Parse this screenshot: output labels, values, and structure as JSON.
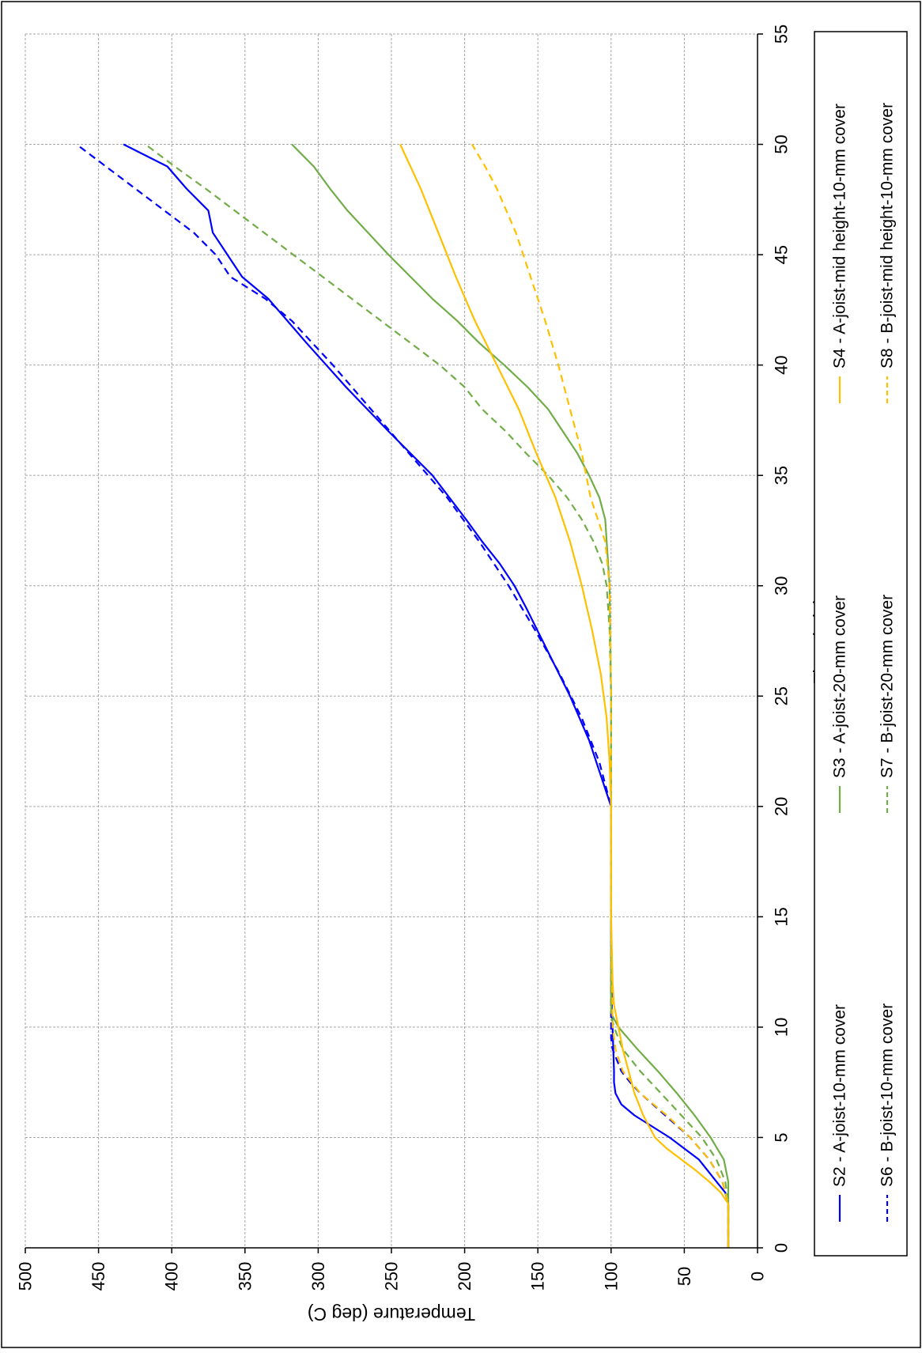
{
  "chart_data": {
    "type": "line",
    "xlabel": "Time (min)",
    "ylabel": "Temperature (deg C)",
    "xlim": [
      0,
      55
    ],
    "ylim": [
      0,
      500
    ],
    "xticks": [
      0,
      5,
      10,
      15,
      20,
      25,
      30,
      35,
      40,
      45,
      50,
      55
    ],
    "yticks": [
      0,
      50,
      100,
      150,
      200,
      250,
      300,
      350,
      400,
      450,
      500
    ],
    "xtick_labels": [
      "0",
      "5",
      "10",
      "15",
      "20",
      "25",
      "30",
      "35",
      "40",
      "45",
      "50",
      "55"
    ],
    "ytick_labels": [
      "0",
      "50",
      "100",
      "150",
      "200",
      "250",
      "300",
      "350",
      "400",
      "450",
      "500"
    ],
    "grid": true,
    "orientation": "rotated 90 degrees clockwise",
    "legend_position": "right",
    "series": [
      {
        "name": "S2 - A-joist-10-mm cover",
        "color": "#0000FF",
        "dash": "solid",
        "x": [
          0,
          2,
          2.5,
          3,
          4,
          5,
          5.5,
          6,
          6.5,
          7,
          7.5,
          8,
          9,
          10,
          11,
          15,
          20,
          21,
          23,
          25,
          27,
          29,
          30,
          31,
          32,
          33,
          35,
          37,
          39,
          41,
          43,
          44,
          45,
          46,
          47,
          48,
          49,
          50
        ],
        "y": [
          20,
          20,
          22,
          28,
          40,
          60,
          72,
          84,
          93,
          97,
          98,
          98,
          98.5,
          99,
          99.5,
          100,
          100,
          105,
          115,
          128,
          143,
          158,
          166,
          176,
          188,
          199,
          222,
          252,
          281,
          308,
          334,
          352,
          362,
          372,
          375,
          390,
          403,
          433
        ]
      },
      {
        "name": "S6 - B-joist-10-mm cover",
        "color": "#0000FF",
        "dash": "dashed",
        "x": [
          0,
          2,
          3,
          4,
          5,
          6,
          7,
          7.5,
          8,
          9,
          9.5,
          10,
          15,
          20,
          22,
          24,
          26,
          28,
          30,
          32,
          34,
          36,
          38,
          40,
          42,
          43,
          44,
          45,
          46,
          47,
          48,
          49,
          50
        ],
        "y": [
          20,
          20,
          24,
          33,
          46,
          63,
          80,
          87,
          93,
          99,
          100,
          100,
          100,
          100,
          108,
          120,
          135,
          152,
          170,
          190,
          212,
          238,
          264,
          290,
          318,
          336,
          360,
          370,
          385,
          405,
          425,
          445,
          465
        ]
      },
      {
        "name": "S3 - A-joist-20-mm cover",
        "color": "#70AD47",
        "dash": "solid",
        "x": [
          0,
          3,
          4,
          5,
          6,
          7,
          8,
          9,
          10,
          10.5,
          11,
          15,
          20,
          25,
          30,
          33,
          34,
          35,
          36,
          37,
          38,
          39,
          40,
          41,
          42,
          43,
          44,
          45,
          46,
          47,
          48,
          49,
          50
        ],
        "y": [
          20,
          20,
          23,
          32,
          43,
          55,
          68,
          82,
          95,
          99,
          100,
          100,
          100,
          100,
          101,
          104,
          108,
          115,
          123,
          133,
          143,
          157,
          173,
          190,
          205,
          222,
          237,
          252,
          266,
          280,
          292,
          303,
          318
        ]
      },
      {
        "name": "S7 - B-joist-20-mm cover",
        "color": "#70AD47",
        "dash": "dashed",
        "x": [
          0,
          2,
          3,
          4,
          5,
          6,
          7,
          8,
          9,
          10,
          10.5,
          15,
          20,
          25,
          28,
          30,
          31,
          32,
          33,
          34,
          35,
          36,
          37,
          38,
          39,
          40,
          41,
          42,
          43,
          44,
          45,
          46,
          47,
          48,
          49,
          50
        ],
        "y": [
          20,
          20,
          22,
          28,
          38,
          52,
          66,
          80,
          92,
          98,
          100,
          100,
          100,
          100,
          101,
          103,
          106,
          112,
          120,
          130,
          143,
          158,
          172,
          188,
          200,
          217,
          237,
          257,
          277,
          297,
          317,
          337,
          357,
          377,
          398,
          418
        ]
      },
      {
        "name": "S4 - A-joist-mid height-10-mm cover",
        "color": "#FFC000",
        "dash": "solid",
        "x": [
          0,
          2,
          2.5,
          3,
          3.5,
          4,
          4.5,
          5,
          6,
          7,
          8,
          9,
          10,
          11,
          12,
          15,
          20,
          22,
          24,
          26,
          28,
          30,
          32,
          34,
          36,
          38,
          40,
          42,
          44,
          46,
          48,
          50
        ],
        "y": [
          20,
          20,
          25,
          33,
          42,
          52,
          62,
          70,
          78,
          84,
          88,
          92,
          95,
          98,
          99,
          100,
          100,
          101,
          103,
          107,
          113,
          120,
          128,
          138,
          151,
          163,
          178,
          193,
          206,
          218,
          230,
          244
        ]
      },
      {
        "name": "S8 - B-joist-mid height-10-mm cover",
        "color": "#FFC000",
        "dash": "dashed",
        "x": [
          0,
          2,
          3,
          4,
          5,
          6,
          7,
          8,
          9,
          10,
          15,
          20,
          25,
          30,
          32,
          33,
          34,
          35,
          36,
          38,
          40,
          42,
          44,
          46,
          48,
          49,
          50
        ],
        "y": [
          20,
          20,
          24,
          33,
          46,
          62,
          80,
          92,
          97,
          99,
          100,
          100,
          100,
          101,
          104,
          109,
          114,
          117,
          120,
          128,
          136,
          145,
          155,
          165,
          178,
          186,
          195
        ]
      }
    ]
  }
}
